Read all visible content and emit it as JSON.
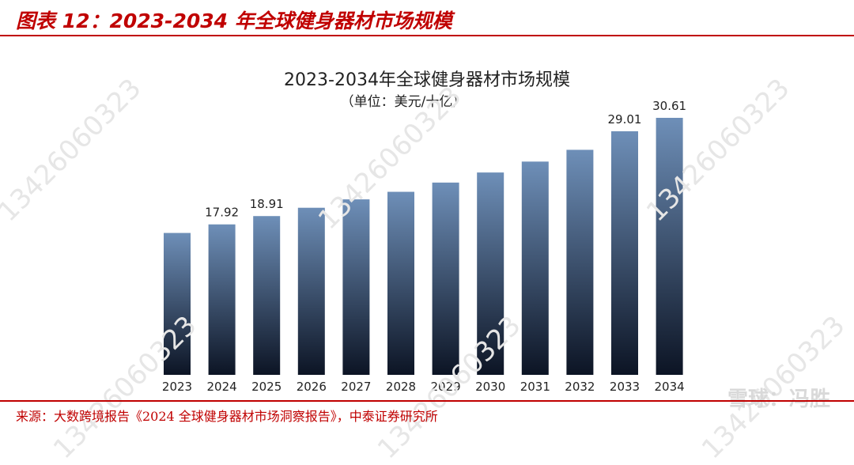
{
  "header": {
    "figure_title": "图表 12：2023-2034 年全球健身器材市场规模"
  },
  "footer": {
    "source": "来源：大数跨境报告《2024 全球健身器材市场洞察报告》，中泰证券研究所"
  },
  "watermark": {
    "text": "13426060323"
  },
  "brand": {
    "text": "雪球：冯胜"
  },
  "chart_data": {
    "type": "bar",
    "title": "2023-2034年全球健身器材市场规模",
    "subtitle": "（单位：美元/十亿）",
    "categories": [
      "2023",
      "2024",
      "2025",
      "2026",
      "2027",
      "2028",
      "2029",
      "2030",
      "2031",
      "2032",
      "2033",
      "2034"
    ],
    "values": [
      16.9,
      17.92,
      18.91,
      19.9,
      20.9,
      21.8,
      22.9,
      24.1,
      25.4,
      26.8,
      29.01,
      30.61
    ],
    "data_labels": {
      "2024": "17.92",
      "2025": "18.91",
      "2033": "29.01",
      "2034": "30.61"
    },
    "ylim": [
      0,
      30.61
    ],
    "grid": false,
    "colors": {
      "bar_top": "#6e8fb8",
      "bar_bottom": "#0c1424",
      "text": "#222222"
    }
  }
}
